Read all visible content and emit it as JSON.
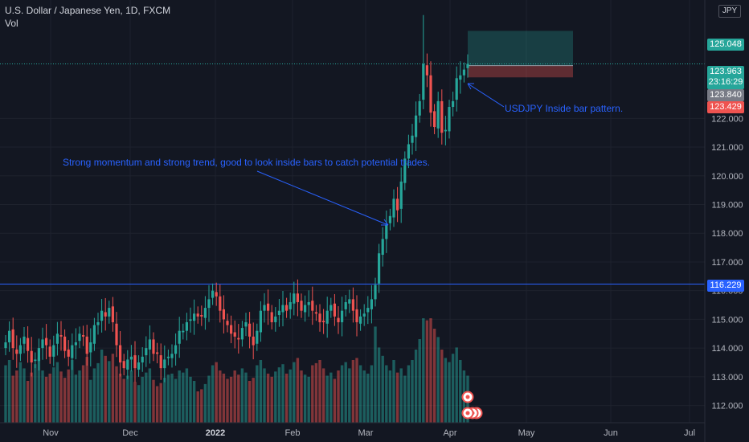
{
  "header": {
    "title": "U.S. Dollar / Japanese Yen, 1D, FXCM",
    "indicator": "Vol"
  },
  "currency_button": "JPY",
  "annotations": {
    "trend": "Strong momentum and strong trend, good to look inside bars to catch potential trades.",
    "pattern": "USDJPY Inside bar pattern."
  },
  "price_tags": {
    "target": "125.048",
    "current": "123.963",
    "countdown": "23:16:29",
    "entry": "123.840",
    "stop": "123.429",
    "level": "116.229"
  },
  "colors": {
    "background": "#131722",
    "up": "#26a69a",
    "down": "#ef5350",
    "level_line": "#2962ff",
    "annotation": "#2962ff"
  },
  "chart_data": {
    "type": "candlestick",
    "title": "U.S. Dollar / Japanese Yen, 1D, FXCM",
    "y_axis_ticks": [
      112.0,
      113.0,
      114.0,
      115.0,
      116.0,
      117.0,
      118.0,
      119.0,
      120.0,
      121.0,
      122.0
    ],
    "ylim": [
      111.4,
      125.9
    ],
    "x_axis_labels": [
      "Nov",
      "Dec",
      "2022",
      "Feb",
      "Mar",
      "Apr",
      "May",
      "Jun",
      "Jul"
    ],
    "horizontal_level": 116.229,
    "position": {
      "target": 125.048,
      "entry": 123.84,
      "stop": 123.429
    },
    "closes": [
      114.2,
      114.6,
      114.0,
      113.8,
      114.1,
      114.4,
      113.9,
      113.5,
      113.6,
      114.0,
      114.3,
      114.1,
      113.7,
      114.1,
      114.5,
      114.4,
      113.9,
      113.7,
      114.1,
      114.2,
      114.5,
      114.4,
      113.8,
      114.2,
      114.8,
      114.9,
      115.3,
      115.1,
      115.4,
      114.9,
      114.1,
      113.5,
      113.3,
      113.6,
      113.7,
      113.3,
      113.5,
      113.7,
      114.0,
      114.3,
      113.8,
      113.8,
      113.3,
      113.6,
      113.7,
      113.8,
      114.1,
      114.6,
      114.6,
      114.9,
      115.0,
      115.2,
      115.1,
      115.1,
      115.4,
      115.7,
      116.0,
      115.8,
      115.3,
      115.0,
      114.8,
      114.5,
      114.4,
      114.3,
      114.7,
      114.9,
      114.4,
      114.1,
      114.6,
      115.3,
      115.5,
      115.3,
      114.9,
      115.1,
      115.3,
      115.5,
      115.3,
      115.6,
      115.9,
      115.6,
      115.3,
      115.5,
      115.6,
      115.3,
      115.2,
      114.9,
      114.9,
      115.3,
      115.5,
      115.1,
      114.9,
      115.3,
      115.6,
      115.7,
      115.3,
      114.9,
      115.1,
      115.2,
      115.4,
      115.7,
      116.2,
      117.3,
      117.8,
      118.3,
      118.6,
      119.2,
      118.8,
      119.8,
      120.6,
      121.1,
      121.4,
      122.1,
      122.6,
      123.9,
      123.5,
      122.2,
      121.7,
      122.6,
      121.5,
      121.6,
      122.4,
      122.6,
      123.4,
      123.5,
      123.7,
      123.9
    ],
    "volume_ratio": [
      0.55,
      0.6,
      0.45,
      0.5,
      0.58,
      0.52,
      0.4,
      0.48,
      0.56,
      0.62,
      0.5,
      0.44,
      0.47,
      0.53,
      0.58,
      0.49,
      0.43,
      0.51,
      0.6,
      0.46,
      0.5,
      0.55,
      0.63,
      0.41,
      0.52,
      0.57,
      0.7,
      0.64,
      0.59,
      0.66,
      0.54,
      0.47,
      0.42,
      0.45,
      0.5,
      0.39,
      0.36,
      0.44,
      0.48,
      0.52,
      0.41,
      0.35,
      0.38,
      0.43,
      0.46,
      0.47,
      0.42,
      0.5,
      0.48,
      0.52,
      0.44,
      0.4,
      0.3,
      0.32,
      0.37,
      0.45,
      0.55,
      0.58,
      0.5,
      0.47,
      0.42,
      0.44,
      0.5,
      0.46,
      0.52,
      0.48,
      0.4,
      0.43,
      0.55,
      0.6,
      0.52,
      0.47,
      0.44,
      0.49,
      0.53,
      0.56,
      0.47,
      0.51,
      0.58,
      0.62,
      0.5,
      0.46,
      0.44,
      0.55,
      0.57,
      0.6,
      0.52,
      0.45,
      0.48,
      0.42,
      0.5,
      0.55,
      0.58,
      0.52,
      0.6,
      0.62,
      0.55,
      0.5,
      0.47,
      0.55,
      0.92,
      0.72,
      0.64,
      0.55,
      0.5,
      0.6,
      0.48,
      0.52,
      0.45,
      0.55,
      0.6,
      0.7,
      0.8,
      1.0,
      0.98,
      1.0,
      0.9,
      0.82,
      0.7,
      0.62,
      0.58,
      0.66,
      0.72,
      0.6,
      0.5,
      0.45
    ]
  }
}
